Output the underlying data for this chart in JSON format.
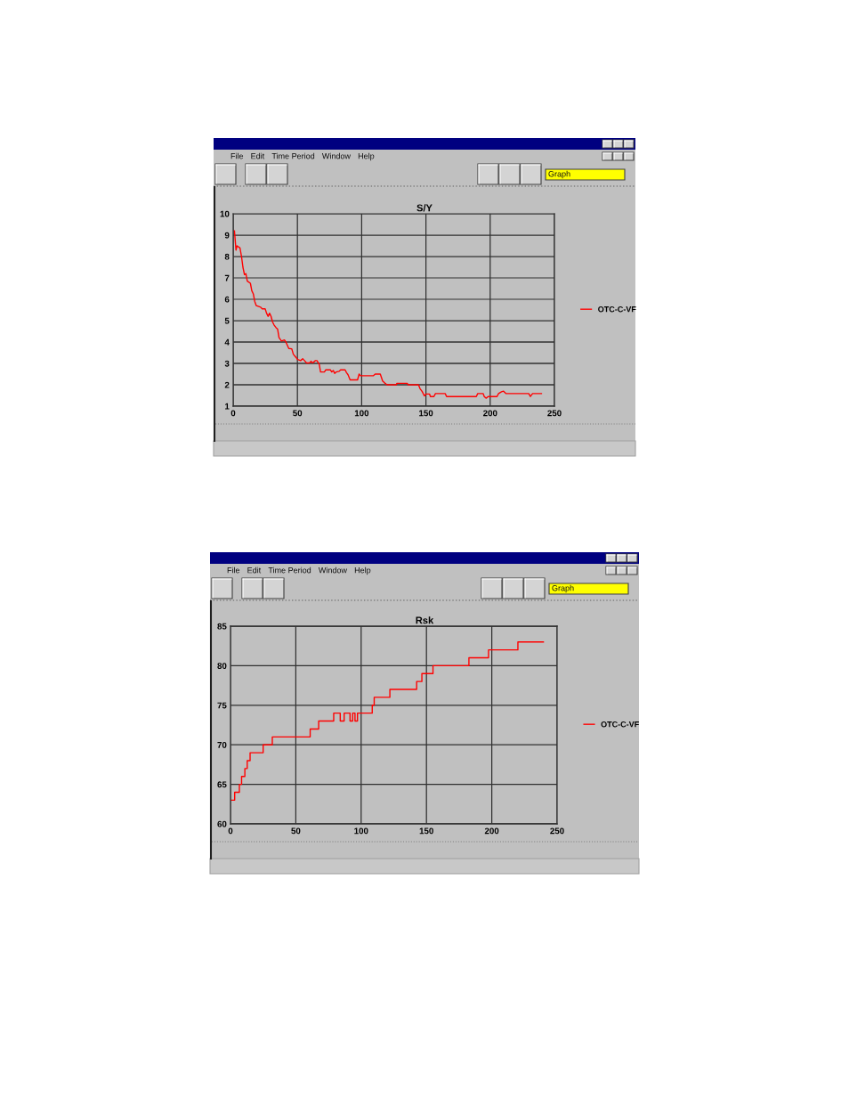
{
  "chart_data": [
    {
      "type": "line",
      "title": "S/Y",
      "annotations": [
        "File",
        "Edit",
        "Time Period",
        "Window",
        "Help",
        "Graph"
      ],
      "x": [
        1,
        1.8,
        2.2,
        3,
        5.3,
        6.5,
        7.6,
        8.8,
        9.9,
        11,
        13.4,
        14.5,
        15.7,
        16.8,
        18,
        21.4,
        22.6,
        24.9,
        26,
        27.2,
        28.3,
        29.5,
        30.6,
        31.8,
        33.4,
        34.6,
        35.7,
        37.6,
        39.9,
        41,
        43.3,
        45.6,
        46.8,
        48.6,
        50.2,
        52.5,
        54.1,
        55.5,
        57.1,
        59.4,
        60.6,
        61.8,
        64,
        65.2,
        67,
        68,
        71,
        72.1,
        75.6,
        76.7,
        77.9,
        79,
        80.2,
        82.5,
        83.6,
        87.1,
        88.2,
        89.4,
        91,
        96.8,
        98,
        99.1,
        109,
        110.5,
        114.5,
        116.3,
        117.8,
        119.7,
        127,
        127.4,
        135.5,
        136,
        144.2,
        145.4,
        147,
        148.8,
        150,
        152.8,
        153.5,
        156.2,
        157.4,
        165,
        166.1,
        189.2,
        190.3,
        194.5,
        195.4,
        196.8,
        198.4,
        205.3,
        206.5,
        208.8,
        210.4,
        212.2,
        230,
        231.3,
        233,
        239.9
      ],
      "series": [
        {
          "name": "OTC-C-VF",
          "color": "#ff0000",
          "values": [
            9.2,
            8.6,
            8.3,
            8.5,
            8.4,
            8.0,
            7.5,
            7.15,
            7.2,
            6.85,
            6.75,
            6.4,
            6.25,
            5.9,
            5.7,
            5.63,
            5.55,
            5.55,
            5.35,
            5.2,
            5.35,
            5.2,
            4.95,
            4.8,
            4.67,
            4.6,
            4.2,
            4.05,
            4.1,
            4.0,
            3.7,
            3.68,
            3.43,
            3.3,
            3.18,
            3.13,
            3.22,
            3.13,
            3.02,
            3.02,
            3.1,
            3.02,
            3.13,
            3.13,
            2.95,
            2.6,
            2.6,
            2.7,
            2.7,
            2.6,
            2.67,
            2.53,
            2.6,
            2.63,
            2.7,
            2.7,
            2.57,
            2.47,
            2.23,
            2.23,
            2.5,
            2.42,
            2.42,
            2.5,
            2.5,
            2.18,
            2.09,
            2.0,
            2.0,
            2.07,
            2.07,
            2.0,
            2.0,
            1.82,
            1.69,
            1.48,
            1.57,
            1.57,
            1.45,
            1.45,
            1.59,
            1.59,
            1.45,
            1.45,
            1.59,
            1.59,
            1.45,
            1.37,
            1.45,
            1.45,
            1.59,
            1.67,
            1.7,
            1.59,
            1.59,
            1.45,
            1.59,
            1.59
          ]
        }
      ],
      "xlim": [
        0,
        250
      ],
      "xticks": [
        0,
        50,
        100,
        150,
        200,
        250
      ],
      "ylim": [
        1,
        10
      ],
      "yticks": [
        1,
        2,
        3,
        4,
        5,
        6,
        7,
        8,
        9,
        10
      ],
      "grid": true,
      "legend": "right"
    },
    {
      "type": "step",
      "title": "Rsk",
      "annotations": [
        "File",
        "Edit",
        "Time Period",
        "Window",
        "Help",
        "Graph"
      ],
      "x": [
        0.5,
        3.2,
        6.8,
        8.5,
        11,
        12.8,
        15,
        25,
        32,
        61,
        67.5,
        79,
        84,
        87,
        91.5,
        93.5,
        95.3,
        97.2,
        108.5,
        110,
        122,
        142.5,
        146.5,
        155,
        182.5,
        197.5,
        220,
        239.5
      ],
      "series": [
        {
          "name": "OTC-C-VF",
          "color": "#ff0000",
          "values": [
            63,
            64,
            65,
            66,
            67,
            68,
            69,
            70,
            71,
            72,
            73,
            74,
            73,
            74,
            73,
            74,
            73,
            74,
            75,
            76,
            77,
            78,
            79,
            80,
            81,
            82,
            83,
            83
          ]
        }
      ],
      "xlim": [
        0,
        250
      ],
      "xticks": [
        0,
        50,
        100,
        150,
        200,
        250
      ],
      "ylim": [
        60,
        85
      ],
      "yticks": [
        60,
        65,
        70,
        75,
        80,
        85
      ],
      "grid": true,
      "legend": "right"
    }
  ]
}
